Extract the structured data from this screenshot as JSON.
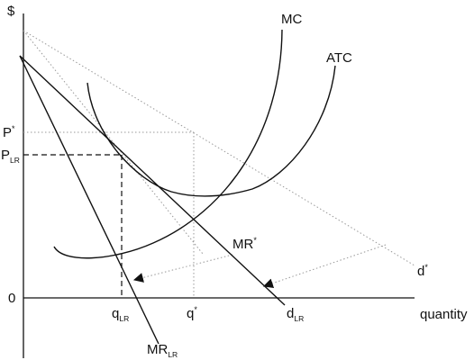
{
  "axes": {
    "y_label": "$",
    "x_label": "quantity",
    "origin_label": "0"
  },
  "price_labels": {
    "p_star": "P",
    "p_star_mark": "*",
    "p_lr": "P",
    "p_lr_sub": "LR"
  },
  "quantity_labels": {
    "q_lr": "q",
    "q_lr_sub": "LR",
    "q_star": "q",
    "q_star_mark": "*"
  },
  "curve_labels": {
    "mc": "MC",
    "atc": "ATC",
    "mr_star": "MR",
    "mr_star_mark": "*",
    "d_star": "d",
    "d_star_mark": "*",
    "d_lr": "d",
    "d_lr_sub": "LR",
    "mr_lr": "MR",
    "mr_lr_sub": "LR"
  },
  "colors": {
    "line": "#111111",
    "guide": "#999999"
  }
}
